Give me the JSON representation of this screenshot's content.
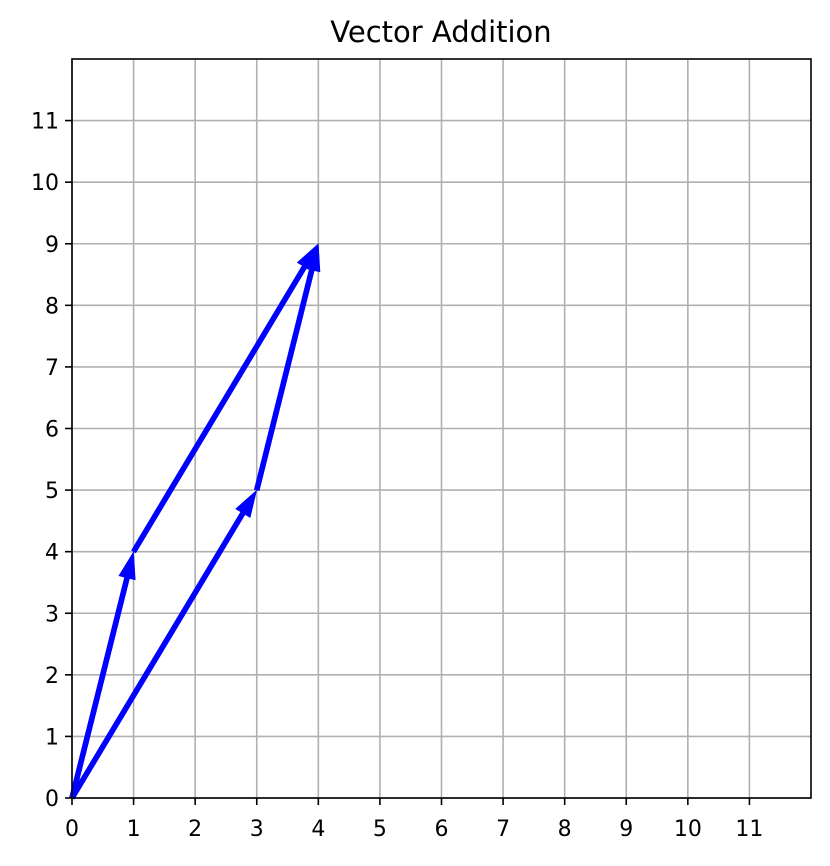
{
  "chart_data": {
    "type": "vector",
    "title": "Vector Addition",
    "xlabel": "",
    "ylabel": "",
    "xlim": [
      0,
      12
    ],
    "ylim": [
      0,
      12
    ],
    "xticks": [
      0,
      1,
      2,
      3,
      4,
      5,
      6,
      7,
      8,
      9,
      10,
      11
    ],
    "yticks": [
      0,
      1,
      2,
      3,
      4,
      5,
      6,
      7,
      8,
      9,
      10,
      11
    ],
    "grid": true,
    "vectors": [
      {
        "x0": 0,
        "y0": 0,
        "dx": 1,
        "dy": 4
      },
      {
        "x0": 1,
        "y0": 4,
        "dx": 3,
        "dy": 5
      },
      {
        "x0": 0,
        "y0": 0,
        "dx": 3,
        "dy": 5
      },
      {
        "x0": 3,
        "y0": 5,
        "dx": 1,
        "dy": 4
      }
    ],
    "colors": {
      "vector": "#0000ff",
      "grid": "#b0b0b0",
      "axes": "#000000"
    }
  }
}
